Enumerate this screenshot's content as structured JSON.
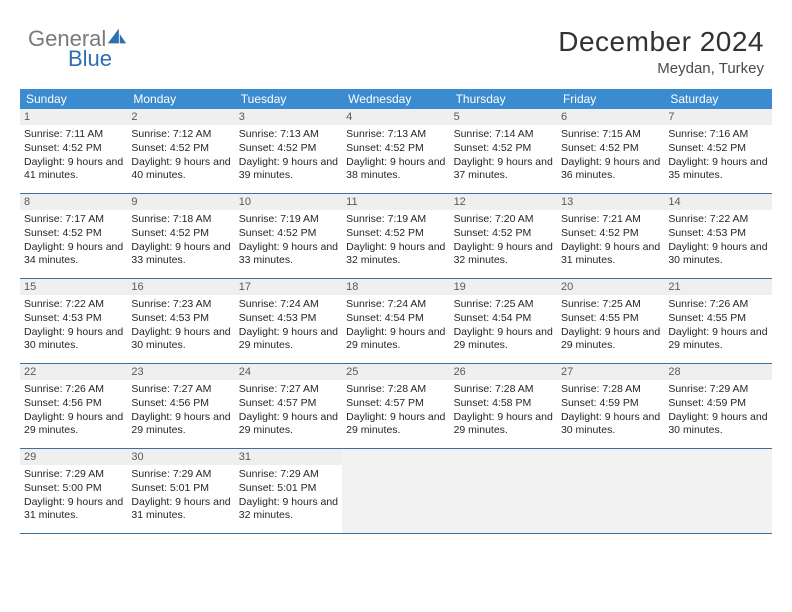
{
  "brand": {
    "word1": "General",
    "word2": "Blue",
    "gray_color": "#7a7a7a",
    "blue_color": "#2f6fb0",
    "icon_color": "#2f6fb0"
  },
  "title": "December 2024",
  "location": "Meydan, Turkey",
  "colors": {
    "header_bg": "#3b8bd0",
    "header_text": "#ffffff",
    "daynum_bg": "#efefef",
    "daynum_text": "#5a5a5a",
    "border": "#3b6fa0",
    "body_text": "#262626",
    "empty_bg": "#f2f2f2",
    "page_bg": "#ffffff"
  },
  "fonts": {
    "title_size_pt": 21,
    "location_size_pt": 11,
    "dow_size_pt": 9,
    "cell_size_pt": 8
  },
  "day_headers": [
    "Sunday",
    "Monday",
    "Tuesday",
    "Wednesday",
    "Thursday",
    "Friday",
    "Saturday"
  ],
  "weeks": [
    [
      {
        "n": 1,
        "sr": "7:11 AM",
        "ss": "4:52 PM",
        "dl": "9 hours and 41 minutes."
      },
      {
        "n": 2,
        "sr": "7:12 AM",
        "ss": "4:52 PM",
        "dl": "9 hours and 40 minutes."
      },
      {
        "n": 3,
        "sr": "7:13 AM",
        "ss": "4:52 PM",
        "dl": "9 hours and 39 minutes."
      },
      {
        "n": 4,
        "sr": "7:13 AM",
        "ss": "4:52 PM",
        "dl": "9 hours and 38 minutes."
      },
      {
        "n": 5,
        "sr": "7:14 AM",
        "ss": "4:52 PM",
        "dl": "9 hours and 37 minutes."
      },
      {
        "n": 6,
        "sr": "7:15 AM",
        "ss": "4:52 PM",
        "dl": "9 hours and 36 minutes."
      },
      {
        "n": 7,
        "sr": "7:16 AM",
        "ss": "4:52 PM",
        "dl": "9 hours and 35 minutes."
      }
    ],
    [
      {
        "n": 8,
        "sr": "7:17 AM",
        "ss": "4:52 PM",
        "dl": "9 hours and 34 minutes."
      },
      {
        "n": 9,
        "sr": "7:18 AM",
        "ss": "4:52 PM",
        "dl": "9 hours and 33 minutes."
      },
      {
        "n": 10,
        "sr": "7:19 AM",
        "ss": "4:52 PM",
        "dl": "9 hours and 33 minutes."
      },
      {
        "n": 11,
        "sr": "7:19 AM",
        "ss": "4:52 PM",
        "dl": "9 hours and 32 minutes."
      },
      {
        "n": 12,
        "sr": "7:20 AM",
        "ss": "4:52 PM",
        "dl": "9 hours and 32 minutes."
      },
      {
        "n": 13,
        "sr": "7:21 AM",
        "ss": "4:52 PM",
        "dl": "9 hours and 31 minutes."
      },
      {
        "n": 14,
        "sr": "7:22 AM",
        "ss": "4:53 PM",
        "dl": "9 hours and 30 minutes."
      }
    ],
    [
      {
        "n": 15,
        "sr": "7:22 AM",
        "ss": "4:53 PM",
        "dl": "9 hours and 30 minutes."
      },
      {
        "n": 16,
        "sr": "7:23 AM",
        "ss": "4:53 PM",
        "dl": "9 hours and 30 minutes."
      },
      {
        "n": 17,
        "sr": "7:24 AM",
        "ss": "4:53 PM",
        "dl": "9 hours and 29 minutes."
      },
      {
        "n": 18,
        "sr": "7:24 AM",
        "ss": "4:54 PM",
        "dl": "9 hours and 29 minutes."
      },
      {
        "n": 19,
        "sr": "7:25 AM",
        "ss": "4:54 PM",
        "dl": "9 hours and 29 minutes."
      },
      {
        "n": 20,
        "sr": "7:25 AM",
        "ss": "4:55 PM",
        "dl": "9 hours and 29 minutes."
      },
      {
        "n": 21,
        "sr": "7:26 AM",
        "ss": "4:55 PM",
        "dl": "9 hours and 29 minutes."
      }
    ],
    [
      {
        "n": 22,
        "sr": "7:26 AM",
        "ss": "4:56 PM",
        "dl": "9 hours and 29 minutes."
      },
      {
        "n": 23,
        "sr": "7:27 AM",
        "ss": "4:56 PM",
        "dl": "9 hours and 29 minutes."
      },
      {
        "n": 24,
        "sr": "7:27 AM",
        "ss": "4:57 PM",
        "dl": "9 hours and 29 minutes."
      },
      {
        "n": 25,
        "sr": "7:28 AM",
        "ss": "4:57 PM",
        "dl": "9 hours and 29 minutes."
      },
      {
        "n": 26,
        "sr": "7:28 AM",
        "ss": "4:58 PM",
        "dl": "9 hours and 29 minutes."
      },
      {
        "n": 27,
        "sr": "7:28 AM",
        "ss": "4:59 PM",
        "dl": "9 hours and 30 minutes."
      },
      {
        "n": 28,
        "sr": "7:29 AM",
        "ss": "4:59 PM",
        "dl": "9 hours and 30 minutes."
      }
    ],
    [
      {
        "n": 29,
        "sr": "7:29 AM",
        "ss": "5:00 PM",
        "dl": "9 hours and 31 minutes."
      },
      {
        "n": 30,
        "sr": "7:29 AM",
        "ss": "5:01 PM",
        "dl": "9 hours and 31 minutes."
      },
      {
        "n": 31,
        "sr": "7:29 AM",
        "ss": "5:01 PM",
        "dl": "9 hours and 32 minutes."
      },
      null,
      null,
      null,
      null
    ]
  ],
  "labels": {
    "sunrise": "Sunrise:",
    "sunset": "Sunset:",
    "daylight": "Daylight:"
  }
}
